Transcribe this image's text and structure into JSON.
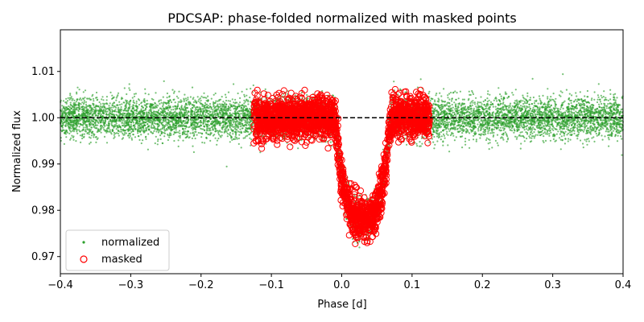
{
  "chart_data": {
    "type": "scatter",
    "title": "PDCSAP: phase-folded normalized with masked points",
    "xlabel": "Phase [d]",
    "ylabel": "Normalized flux",
    "xlim": [
      -0.4,
      0.4
    ],
    "ylim": [
      0.9663,
      1.019
    ],
    "xticks": [
      -0.4,
      -0.3,
      -0.2,
      -0.1,
      0.0,
      0.1,
      0.2,
      0.3,
      0.4
    ],
    "xtick_labels": [
      "−0.4",
      "−0.3",
      "−0.2",
      "−0.1",
      "0.0",
      "0.1",
      "0.2",
      "0.3",
      "0.4"
    ],
    "yticks": [
      0.97,
      0.98,
      0.99,
      1.0,
      1.01
    ],
    "ytick_labels": [
      "0.97",
      "0.98",
      "0.99",
      "1.00",
      "1.01"
    ],
    "grid": false,
    "legend_position": "lower-left",
    "reference_line": {
      "y": 1.0,
      "style": "dashed",
      "color": "#000000"
    },
    "series": [
      {
        "name": "normalized",
        "marker": "dot",
        "color": "#2ca02c",
        "x_range": [
          -0.4,
          0.4
        ],
        "baseline": 1.0,
        "scatter_sd": 0.0022,
        "transit": {
          "center": 0.03,
          "depth": 0.022,
          "half_width": 0.04
        }
      },
      {
        "name": "masked",
        "marker": "open-circle",
        "color": "#ff0000",
        "x_ranges": [
          [
            -0.125,
            0.125
          ]
        ],
        "baseline": 1.0,
        "scatter_sd": 0.0022,
        "transit": {
          "center": 0.03,
          "depth": 0.022,
          "half_width": 0.04
        }
      }
    ]
  },
  "legend": {
    "items": [
      {
        "label": "normalized",
        "color": "#2ca02c"
      },
      {
        "label": "masked",
        "color": "#ff0000"
      }
    ]
  }
}
